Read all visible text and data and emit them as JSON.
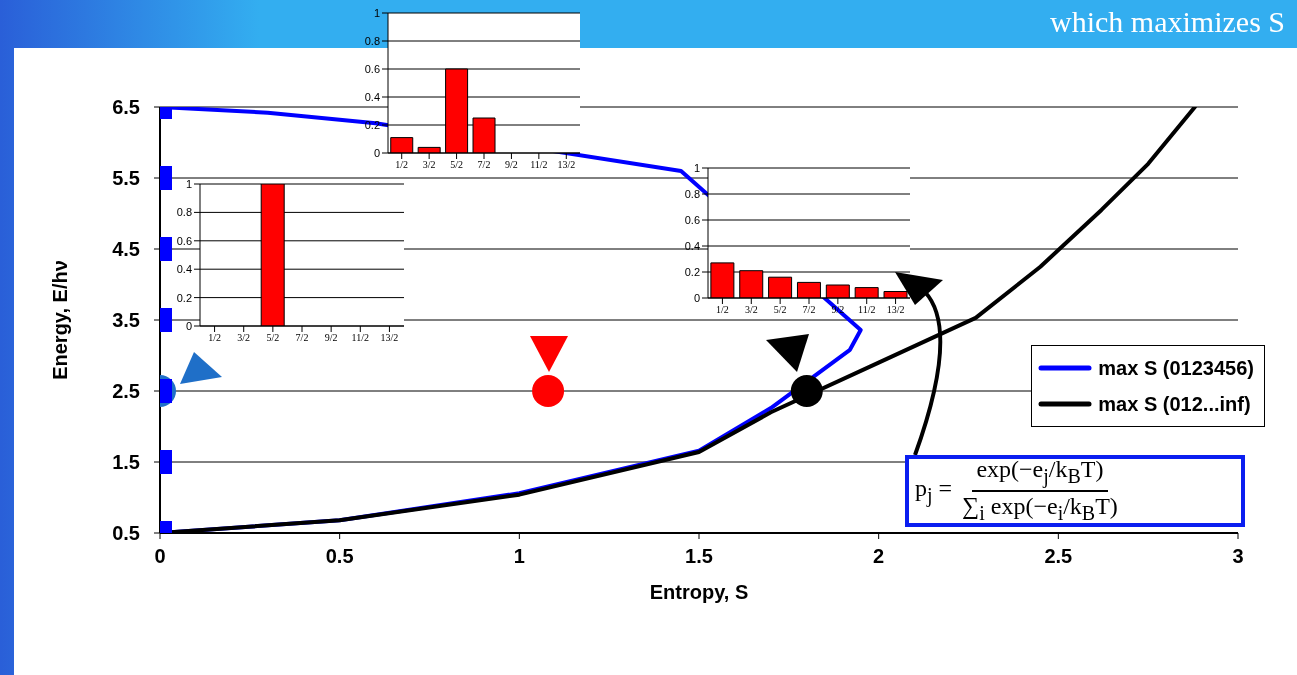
{
  "chart_data": [
    {
      "type": "line",
      "title": "which maximizes S",
      "xlabel": "Entropy, S",
      "ylabel": "Energy, E/hν",
      "xlim": [
        0,
        3
      ],
      "xticks": [
        0,
        0.5,
        1,
        1.5,
        2,
        2.5,
        3
      ],
      "ylim": [
        0.5,
        6.5
      ],
      "yticks": [
        0.5,
        1.5,
        2.5,
        3.5,
        4.5,
        5.5,
        6.5
      ],
      "grid": "y",
      "legend": "right",
      "annotations": [
        "p$_{j}$ =",
        "exp(−e$_{j}$/k$_{B}$T)",
        "∑$_{i}$ exp(−e$_{i}$/k$_{B}$T)"
      ],
      "series": [
        {
          "type": "line",
          "name": "max S (0123456)",
          "color": "#0000ff",
          "marker": "none",
          "x": [
            0,
            0.3,
            0.6,
            1.45,
            1.95,
            1.92,
            1.7,
            1.5,
            1,
            0.5,
            0
          ],
          "values": [
            6.5,
            6.42,
            6.27,
            5.6,
            3.36,
            3.08,
            2.26,
            1.66,
            1.06,
            0.68,
            0.5
          ]
        },
        {
          "type": "line",
          "name": "max S (012...inf)",
          "color": "#000000",
          "marker": "none",
          "x": [
            0,
            0.5,
            1,
            1.5,
            1.7,
            2,
            2.27,
            2.45,
            2.62,
            2.75,
            2.88
          ],
          "values": [
            0.5,
            0.68,
            1.04,
            1.64,
            2.2,
            2.9,
            3.53,
            4.25,
            5.05,
            5.7,
            6.5
          ]
        },
        {
          "type": "scatter",
          "colors": [
            "#1f6fc8",
            "#ff0000",
            "#000000"
          ],
          "marker": "circle",
          "x": [
            0,
            1.08,
            1.8
          ],
          "values": [
            2.5,
            2.5,
            2.5
          ]
        },
        {
          "type": "scatter",
          "color": "#0000ff",
          "marker": "square",
          "x": [
            0,
            0,
            0,
            0,
            0,
            0,
            0
          ],
          "values": [
            0.5,
            1.5,
            2.5,
            3.5,
            4.5,
            5.5,
            6.5
          ]
        }
      ]
    },
    {
      "type": "bar",
      "categories": [
        "1/2",
        "3/2",
        "5/2",
        "7/2",
        "9/2",
        "11/2",
        "13/2"
      ],
      "values": [
        0,
        0,
        1,
        0,
        0,
        0,
        0
      ],
      "color": "#ff0000",
      "ylim": [
        0,
        1
      ],
      "yticks": [
        0,
        0.2,
        0.4,
        0.6,
        0.8,
        1
      ],
      "grid": "y"
    },
    {
      "type": "bar",
      "categories": [
        "1/2",
        "3/2",
        "5/2",
        "7/2",
        "9/2",
        "11/2",
        "13/2"
      ],
      "values": [
        0.11,
        0.04,
        0.6,
        0.25,
        0,
        0,
        0
      ],
      "color": "#ff0000",
      "ylim": [
        0,
        1
      ],
      "yticks": [
        0,
        0.2,
        0.4,
        0.6,
        0.8,
        1
      ],
      "grid": "y"
    },
    {
      "type": "bar",
      "categories": [
        "1/2",
        "3/2",
        "5/2",
        "7/2",
        "9/2",
        "11/2",
        "13/2"
      ],
      "values": [
        0.27,
        0.21,
        0.16,
        0.12,
        0.1,
        0.08,
        0.05
      ],
      "color": "#ff0000",
      "ylim": [
        0,
        1
      ],
      "yticks": [
        0,
        0.2,
        0.4,
        0.6,
        0.8,
        1
      ],
      "grid": "y"
    }
  ]
}
